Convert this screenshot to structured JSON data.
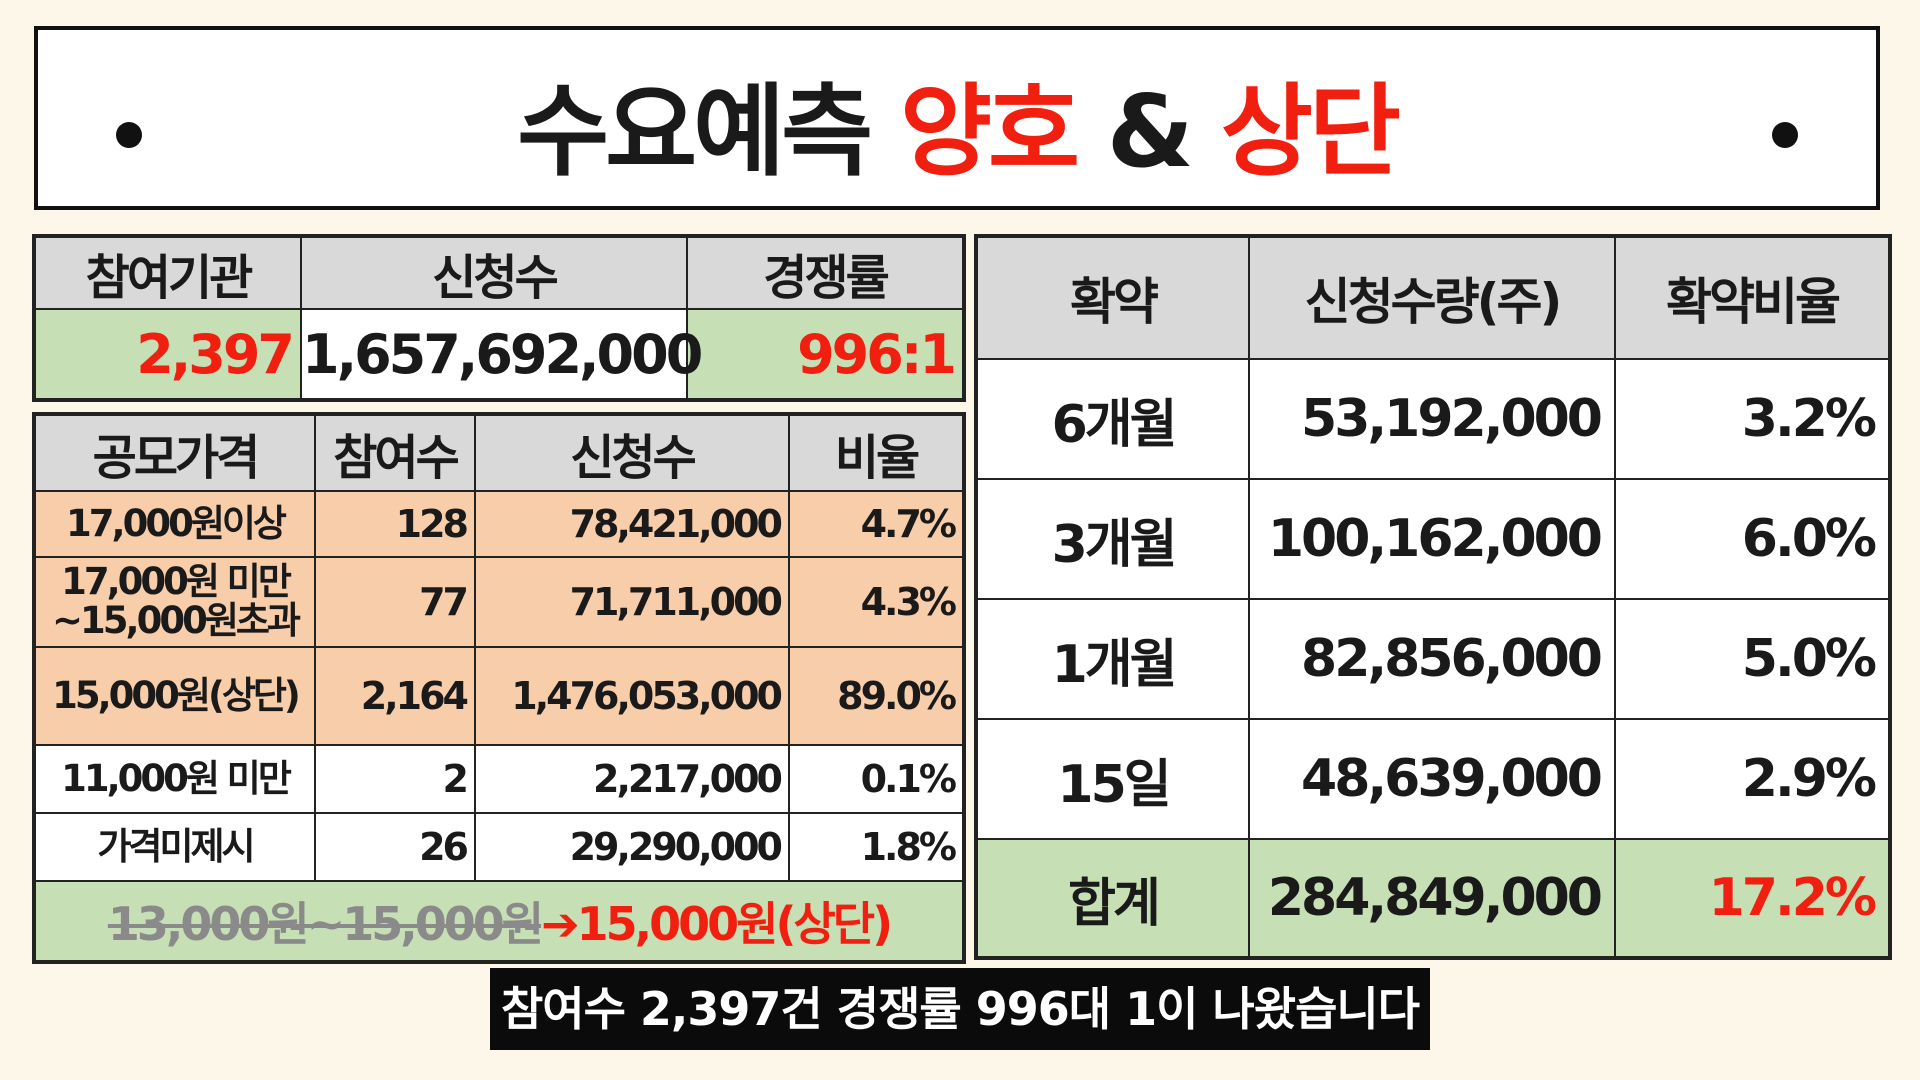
{
  "title": {
    "part1": "수요예측",
    "part2": "양호",
    "part3": "&",
    "part4": "상단"
  },
  "summary": {
    "headers": [
      "참여기관",
      "신청수",
      "경쟁률"
    ],
    "values": [
      "2,397",
      "1,657,692,000",
      "996:1"
    ]
  },
  "bids": {
    "headers": [
      "공모가격",
      "참여수",
      "신청수",
      "비율"
    ],
    "rows": [
      {
        "price": "17,000원이상",
        "count": "128",
        "qty": "78,421,000",
        "ratio": "4.7%"
      },
      {
        "price": "17,000원 미만\n~15,000원초과",
        "count": "77",
        "qty": "71,711,000",
        "ratio": "4.3%"
      },
      {
        "price": "15,000원(상단)",
        "count": "2,164",
        "qty": "1,476,053,000",
        "ratio": "89.0%"
      },
      {
        "price": "11,000원 미만",
        "count": "2",
        "qty": "2,217,000",
        "ratio": "0.1%"
      },
      {
        "price": "가격미제시",
        "count": "26",
        "qty": "29,290,000",
        "ratio": "1.8%"
      }
    ],
    "note_old": "13,000원~15,000원",
    "note_arrow": "➔",
    "note_new": "15,000원(상단)"
  },
  "lockup": {
    "headers": [
      "확약",
      "신청수량(주)",
      "확약비율"
    ],
    "rows": [
      {
        "period": "6개월",
        "qty": "53,192,000",
        "ratio": "3.2%"
      },
      {
        "period": "3개월",
        "qty": "100,162,000",
        "ratio": "6.0%"
      },
      {
        "period": "1개월",
        "qty": "82,856,000",
        "ratio": "5.0%"
      },
      {
        "period": "15일",
        "qty": "48,639,000",
        "ratio": "2.9%"
      }
    ],
    "total": {
      "period": "합계",
      "qty": "284,849,000",
      "ratio": "17.2%"
    }
  },
  "subtitle": "참여수 2,397건 경쟁률 996대 1이 나왔습니다",
  "colors": {
    "accent_red": "#f01f10",
    "header_gray": "#d9d9d9",
    "green": "#c6dfb4",
    "peach": "#f8cdaa"
  }
}
